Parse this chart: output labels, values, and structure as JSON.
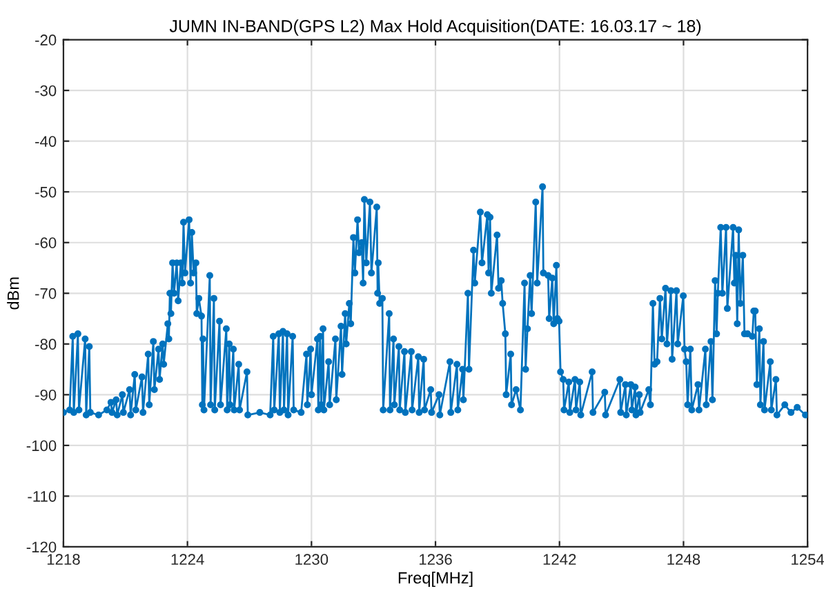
{
  "chart_data": {
    "type": "line",
    "title": "JUMN IN-BAND(GPS L2) Max Hold Acquisition(DATE: 16.03.17 ~ 18)",
    "xlabel": "Freq[MHz]",
    "ylabel": "dBm",
    "x": [
      1218.0,
      1218.3,
      1218.45,
      1218.5,
      1218.7,
      1218.75,
      1219.05,
      1219.1,
      1219.25,
      1219.3,
      1219.7,
      1220.1,
      1220.3,
      1220.35,
      1220.55,
      1220.6,
      1220.85,
      1220.9,
      1221.2,
      1221.25,
      1221.45,
      1221.5,
      1221.8,
      1221.85,
      1222.1,
      1222.15,
      1222.35,
      1222.4,
      1222.6,
      1222.65,
      1222.8,
      1222.85,
      1223.05,
      1223.1,
      1223.15,
      1223.2,
      1223.28,
      1223.35,
      1223.48,
      1223.55,
      1223.68,
      1223.75,
      1223.81,
      1223.88,
      1224.08,
      1224.15,
      1224.21,
      1224.3,
      1224.41,
      1224.45,
      1224.55,
      1224.68,
      1224.72,
      1224.75,
      1224.8,
      1225.08,
      1225.12,
      1225.28,
      1225.32,
      1225.55,
      1225.6,
      1225.88,
      1225.92,
      1226.02,
      1226.06,
      1226.22,
      1226.26,
      1226.48,
      1226.52,
      1226.88,
      1226.92,
      1227.5,
      1228.0,
      1228.15,
      1228.2,
      1228.42,
      1228.47,
      1228.62,
      1228.67,
      1228.82,
      1228.87,
      1229.09,
      1229.14,
      1229.5,
      1229.76,
      1229.8,
      1229.96,
      1230.0,
      1230.29,
      1230.33,
      1230.42,
      1230.47,
      1230.56,
      1230.6,
      1230.83,
      1230.88,
      1231.16,
      1231.2,
      1231.43,
      1231.48,
      1231.63,
      1231.68,
      1231.83,
      1231.9,
      1232.03,
      1232.1,
      1232.23,
      1232.3,
      1232.43,
      1232.5,
      1232.56,
      1232.65,
      1232.83,
      1232.9,
      1233.16,
      1233.2,
      1233.23,
      1233.3,
      1233.43,
      1233.47,
      1233.76,
      1233.8,
      1233.97,
      1234.01,
      1234.23,
      1234.27,
      1234.5,
      1234.54,
      1234.83,
      1234.87,
      1235.17,
      1235.21,
      1235.43,
      1235.47,
      1235.77,
      1235.81,
      1236.17,
      1236.21,
      1236.7,
      1236.74,
      1237.04,
      1237.08,
      1237.31,
      1237.35,
      1237.57,
      1237.62,
      1237.84,
      1237.9,
      1238.17,
      1238.25,
      1238.51,
      1238.57,
      1238.64,
      1238.7,
      1238.98,
      1239.05,
      1239.18,
      1239.25,
      1239.38,
      1239.42,
      1239.64,
      1239.68,
      1239.9,
      1240.11,
      1240.31,
      1240.36,
      1240.45,
      1240.58,
      1240.65,
      1240.85,
      1240.92,
      1241.18,
      1241.22,
      1241.45,
      1241.5,
      1241.65,
      1241.72,
      1241.85,
      1241.9,
      1241.98,
      1242.05,
      1242.18,
      1242.22,
      1242.45,
      1242.5,
      1242.75,
      1242.8,
      1242.98,
      1243.03,
      1243.58,
      1243.62,
      1244.19,
      1244.23,
      1244.92,
      1244.96,
      1245.19,
      1245.23,
      1245.45,
      1245.5,
      1245.66,
      1245.7,
      1245.86,
      1245.9,
      1246.32,
      1246.4,
      1246.52,
      1246.6,
      1246.72,
      1246.86,
      1246.95,
      1247.13,
      1247.2,
      1247.39,
      1247.45,
      1247.66,
      1247.72,
      1247.99,
      1248.05,
      1248.13,
      1248.2,
      1248.33,
      1248.4,
      1248.7,
      1248.75,
      1249.06,
      1249.1,
      1249.33,
      1249.4,
      1249.53,
      1249.6,
      1249.66,
      1249.8,
      1249.88,
      1250.06,
      1250.12,
      1250.4,
      1250.46,
      1250.53,
      1250.6,
      1250.67,
      1250.75,
      1250.87,
      1250.95,
      1251.1,
      1251.33,
      1251.4,
      1251.47,
      1251.55,
      1251.67,
      1251.72,
      1251.87,
      1251.92,
      1252.2,
      1252.25,
      1252.47,
      1252.52,
      1252.9,
      1253.2,
      1253.5,
      1253.9
    ],
    "series": [
      {
        "color": "#0072bd",
        "values": [
          -93.5,
          -93,
          -78.5,
          -93.5,
          -78,
          -93,
          -79,
          -94,
          -80.5,
          -93.5,
          -94,
          -93,
          -91.5,
          -93.5,
          -91,
          -94,
          -90,
          -93.5,
          -89,
          -94,
          -86,
          -93,
          -86.5,
          -93.5,
          -82,
          -92,
          -79.5,
          -89,
          -81,
          -87,
          -80,
          -84,
          -76,
          -79,
          -70,
          -74,
          -64,
          -70,
          -64,
          -71.5,
          -64,
          -68,
          -56,
          -66,
          -55.5,
          -68,
          -58,
          -66,
          -64,
          -74,
          -71,
          -74.5,
          -92,
          -79,
          -93,
          -66.5,
          -92,
          -71,
          -93,
          -75.5,
          -92,
          -77,
          -93,
          -80,
          -92,
          -81,
          -93,
          -84,
          -93,
          -85.5,
          -94,
          -93.5,
          -94,
          -78.5,
          -93,
          -78,
          -93.5,
          -77.5,
          -93,
          -78,
          -94,
          -78.5,
          -93,
          -93.5,
          -82,
          -92,
          -81,
          -90,
          -79,
          -93,
          -78.5,
          -92,
          -77,
          -93,
          -83.5,
          -92,
          -79,
          -91,
          -76.5,
          -86,
          -74,
          -80,
          -72,
          -76,
          -59,
          -66,
          -55.5,
          -62,
          -60,
          -68,
          -51.5,
          -64,
          -52,
          -66,
          -53,
          -70,
          -64,
          -72,
          -71,
          -93,
          -74,
          -93,
          -79,
          -92,
          -80.5,
          -93,
          -81.5,
          -93.5,
          -81.5,
          -93,
          -82.5,
          -93.5,
          -83,
          -93,
          -89,
          -93.5,
          -90,
          -94,
          -83.5,
          -93.5,
          -84,
          -93,
          -85,
          -91,
          -70,
          -85,
          -61.5,
          -68,
          -54,
          -64,
          -54.5,
          -66,
          -55,
          -70,
          -58.5,
          -69,
          -67.5,
          -72,
          -78,
          -90,
          -82,
          -92,
          -89,
          -93,
          -68,
          -85,
          -77,
          -66.5,
          -74,
          -52,
          -68,
          -49,
          -66,
          -66.5,
          -75,
          -67,
          -76,
          -64.5,
          -75,
          -75.5,
          -85.5,
          -87,
          -93,
          -87.5,
          -93.5,
          -87,
          -93,
          -87.5,
          -94,
          -85.5,
          -93.5,
          -89.5,
          -94,
          -87,
          -93.5,
          -88,
          -94,
          -88,
          -93,
          -88.5,
          -94,
          -90,
          -93.5,
          -89,
          -92,
          -72,
          -84,
          -83.5,
          -71,
          -79,
          -69,
          -80,
          -69.5,
          -83,
          -69.5,
          -80,
          -70.5,
          -81,
          -83.5,
          -92,
          -81,
          -93,
          -88,
          -93,
          -81,
          -92,
          -79.5,
          -91,
          -67.5,
          -78,
          -70,
          -57,
          -70,
          -57,
          -73,
          -57,
          -68,
          -62.5,
          -76,
          -57.5,
          -72,
          -62.5,
          -78,
          -78,
          -78.5,
          -73.5,
          -73.5,
          -88,
          -77,
          -92,
          -79.5,
          -93,
          -83.5,
          -93,
          -87,
          -94,
          -92,
          -93.5,
          -92.5,
          -94
        ]
      }
    ],
    "xlim": [
      1218,
      1254
    ],
    "ylim": [
      -120,
      -20
    ],
    "xticks": [
      1218,
      1224,
      1230,
      1236,
      1242,
      1248,
      1254
    ],
    "yticks": [
      -120,
      -110,
      -100,
      -90,
      -80,
      -70,
      -60,
      -50,
      -40,
      -30,
      -20
    ],
    "grid": true,
    "marker": "circle",
    "line_style": "solid"
  }
}
